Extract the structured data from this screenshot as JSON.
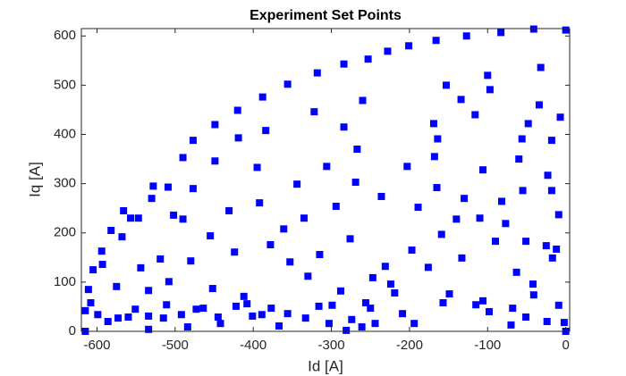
{
  "chart_data": {
    "type": "scatter",
    "title": "Experiment Set Points",
    "x_label": "Id [A]",
    "y_label": "Iq [A]",
    "xlim": [
      -620,
      5
    ],
    "ylim": [
      0,
      615
    ],
    "xticks": [
      -600,
      -500,
      -400,
      -300,
      -200,
      -100,
      0
    ],
    "yticks": [
      0,
      100,
      200,
      300,
      400,
      500,
      600
    ],
    "grid": false,
    "series": [
      {
        "color": "#0000ff",
        "x": [
          0,
          -7,
          -9,
          -12,
          -17,
          -9,
          -2,
          0,
          -18,
          -18,
          -23,
          -25,
          -32,
          -34,
          -41,
          -48,
          -42,
          -51,
          -55,
          -56,
          -60,
          -63,
          -70,
          -68,
          -77,
          -82,
          -90,
          -97,
          -98,
          -100,
          -106,
          -106,
          -110,
          -116,
          -115,
          -127,
          -130,
          -133,
          -134,
          -140,
          -149,
          -153,
          -157,
          -159,
          -165,
          -166,
          -164,
          -169,
          -176,
          -189,
          -201,
          -194,
          -197,
          -203,
          -209,
          -219,
          -228,
          -224,
          -231,
          -236,
          -244,
          -247,
          -250,
          -256,
          -261,
          -253,
          -260,
          -267,
          -269,
          -274,
          -276,
          -284,
          -284,
          -288,
          -299,
          -294,
          -306,
          -303,
          -315,
          -318,
          -322,
          -316,
          -333,
          -330,
          -335,
          -344,
          -356,
          -356,
          -353,
          -361,
          -367,
          -377,
          -378,
          -384,
          -388,
          -389,
          -392,
          -395,
          -401,
          -408,
          -412,
          -420,
          -419,
          -422,
          -424,
          -431,
          -442,
          -445,
          -449,
          -449,
          -452,
          -455,
          -464,
          -473,
          -477,
          -477,
          -480,
          -484,
          -490,
          -490,
          -492,
          -502,
          -508,
          -509,
          -511,
          -515,
          -519,
          -530,
          -528,
          -534,
          -534,
          -534,
          -544,
          -551,
          -547,
          -557,
          -560,
          -568,
          -566,
          -573,
          -575,
          -582,
          -586,
          -593,
          -594,
          -599,
          -605,
          -608,
          -611,
          -615,
          -615,
          -83,
          -41,
          -24,
          -51,
          -168,
          -281
        ],
        "values": [
          612,
          435,
          237,
          167,
          149,
          53,
          18,
          0,
          388,
          286,
          317,
          174,
          536,
          460,
          614,
          422,
          96,
          183,
          286,
          391,
          350,
          120,
          13,
          47,
          219,
          264,
          183,
          491,
          40,
          520,
          62,
          328,
          230,
          440,
          54,
          600,
          270,
          149,
          471,
          228,
          76,
          500,
          58,
          197,
          292,
          591,
          391,
          422,
          130,
          252,
          580,
          16,
          165,
          335,
          36,
          78,
          569,
          96,
          132,
          274,
          16,
          109,
          47,
          58,
          9,
          553,
          469,
          370,
          303,
          24,
          188,
          543,
          415,
          82,
          53,
          254,
          335,
          16,
          156,
          525,
          446,
          51,
          27,
          112,
          230,
          299,
          502,
          36,
          141,
          208,
          11,
          47,
          176,
          408,
          476,
          34,
          261,
          333,
          31,
          56,
          71,
          449,
          393,
          51,
          161,
          245,
          16,
          29,
          420,
          346,
          87,
          194,
          47,
          45,
          388,
          290,
          143,
          9,
          353,
          228,
          34,
          236,
          101,
          293,
          54,
          27,
          147,
          270,
          295,
          31,
          83,
          4,
          129,
          45,
          230,
          230,
          29,
          192,
          245,
          27,
          91,
          205,
          20,
          136,
          163,
          34,
          125,
          58,
          85,
          42,
          0,
          607,
          74,
          20,
          29,
          355,
          2
        ]
      }
    ]
  }
}
